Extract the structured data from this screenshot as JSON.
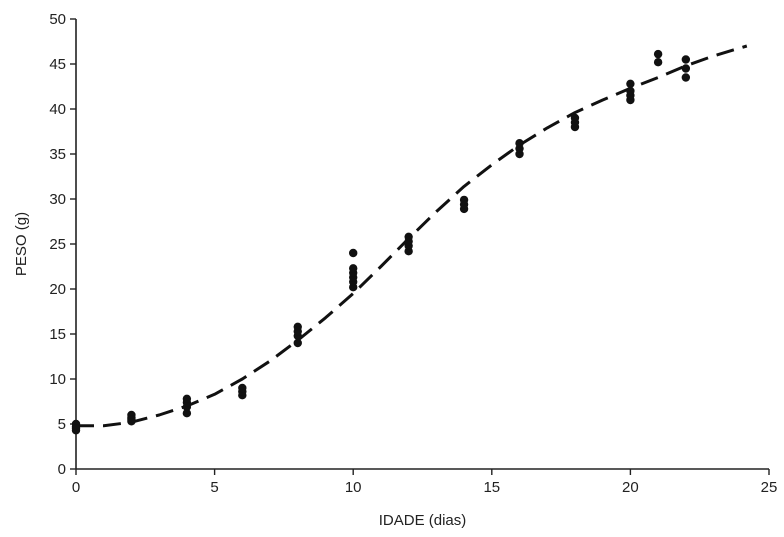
{
  "chart_data": {
    "type": "scatter",
    "title": "",
    "xlabel": "IDADE (dias)",
    "ylabel": "PESO (g)",
    "xlim": [
      0,
      25
    ],
    "ylim": [
      0,
      50
    ],
    "xticks": [
      0,
      5,
      10,
      15,
      20,
      25
    ],
    "yticks": [
      0,
      5,
      10,
      15,
      20,
      25,
      30,
      35,
      40,
      45,
      50
    ],
    "grid": false,
    "legend": "none",
    "series": [
      {
        "type": "scatter",
        "color": "#111111",
        "points": [
          [
            0,
            4.3
          ],
          [
            0,
            4.7
          ],
          [
            0,
            5.0
          ],
          [
            0,
            4.5
          ],
          [
            2,
            5.3
          ],
          [
            2,
            5.7
          ],
          [
            2,
            6.0
          ],
          [
            2,
            5.5
          ],
          [
            4,
            6.2
          ],
          [
            4,
            6.9
          ],
          [
            4,
            7.4
          ],
          [
            4,
            7.8
          ],
          [
            6,
            8.2
          ],
          [
            6,
            8.6
          ],
          [
            6,
            9.0
          ],
          [
            8,
            14.0
          ],
          [
            8,
            14.8
          ],
          [
            8,
            15.3
          ],
          [
            8,
            15.8
          ],
          [
            10,
            20.2
          ],
          [
            10,
            20.8
          ],
          [
            10,
            21.3
          ],
          [
            10,
            21.8
          ],
          [
            10,
            22.3
          ],
          [
            10,
            24.0
          ],
          [
            12,
            24.2
          ],
          [
            12,
            24.8
          ],
          [
            12,
            25.3
          ],
          [
            12,
            25.8
          ],
          [
            14,
            28.9
          ],
          [
            14,
            29.4
          ],
          [
            14,
            29.9
          ],
          [
            16,
            35.0
          ],
          [
            16,
            35.6
          ],
          [
            16,
            36.2
          ],
          [
            18,
            38.0
          ],
          [
            18,
            38.5
          ],
          [
            18,
            39.0
          ],
          [
            20,
            41.0
          ],
          [
            20,
            41.5
          ],
          [
            20,
            42.0
          ],
          [
            20,
            42.8
          ],
          [
            21,
            45.2
          ],
          [
            21,
            46.1
          ],
          [
            22,
            43.5
          ],
          [
            22,
            44.5
          ],
          [
            22,
            45.5
          ]
        ]
      },
      {
        "type": "line",
        "style": "dashed",
        "color": "#111111",
        "x": [
          0,
          1,
          2,
          3,
          4,
          5,
          6,
          7,
          8,
          9,
          10,
          11,
          12,
          13,
          14,
          15,
          16,
          17,
          18,
          19,
          20,
          21,
          22,
          23,
          24.2
        ],
        "y": [
          4.8,
          4.8,
          5.2,
          6.0,
          7.0,
          8.3,
          10.0,
          12.0,
          14.3,
          16.8,
          19.5,
          22.5,
          25.6,
          28.6,
          31.4,
          33.8,
          36.0,
          37.9,
          39.6,
          41.0,
          42.3,
          43.5,
          44.8,
          45.9,
          47.0
        ]
      }
    ]
  }
}
